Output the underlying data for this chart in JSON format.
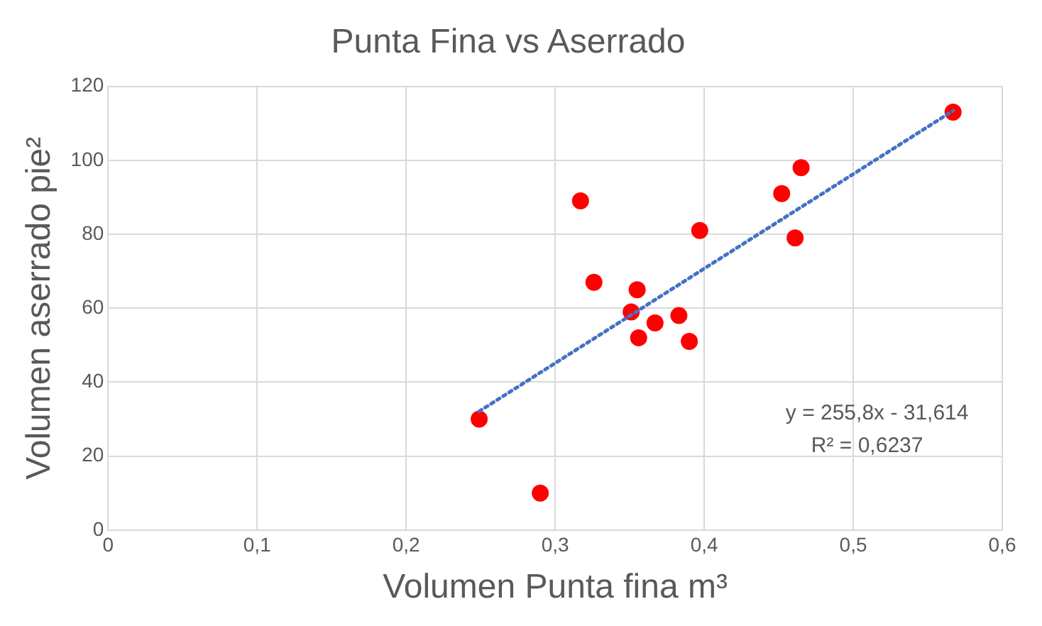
{
  "chart_data": {
    "type": "scatter",
    "title": "Punta Fina vs Aserrado",
    "xlabel": "Volumen Punta fina m³",
    "ylabel": "Volumen aserrado pie²",
    "series": [
      {
        "color": "#ff0000",
        "marker": "circle",
        "x": [
          0.249,
          0.29,
          0.317,
          0.326,
          0.355,
          0.351,
          0.356,
          0.367,
          0.383,
          0.39,
          0.397,
          0.452,
          0.465,
          0.461,
          0.567
        ],
        "values": [
          30,
          10,
          89,
          67,
          65,
          59,
          52,
          56,
          58,
          51,
          81,
          91,
          98,
          79,
          113
        ]
      },
      {
        "type": "line",
        "color": "#4472c4",
        "marker": "none",
        "line_style": "dotted",
        "x": [
          0.249,
          0.567
        ],
        "values": [
          32.1,
          113.4
        ]
      }
    ],
    "xlim": [
      0,
      0.6
    ],
    "xticks": [
      0,
      {
        "value": 0.1,
        "label": "0,1"
      },
      {
        "value": 0.2,
        "label": "0,2"
      },
      {
        "value": 0.3,
        "label": "0,3"
      },
      {
        "value": 0.4,
        "label": "0,4"
      },
      {
        "value": 0.5,
        "label": "0,5"
      },
      {
        "value": 0.6,
        "label": "0,6"
      }
    ],
    "ylim": [
      0,
      120
    ],
    "yticks": [
      0,
      20,
      40,
      60,
      80,
      100,
      120
    ],
    "grid": true,
    "legend": false,
    "annotations": [
      "y = 255,8x - 31,614",
      "R² = 0,6237"
    ]
  }
}
